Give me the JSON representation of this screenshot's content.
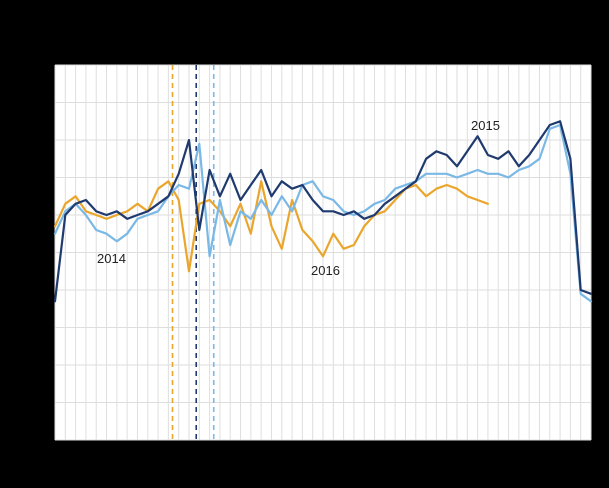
{
  "chart_data": {
    "type": "line",
    "title": "",
    "xlabel": "",
    "ylabel": "",
    "x_unit": "week",
    "x_range": [
      1,
      53
    ],
    "ylim": [
      0,
      100
    ],
    "grid": {
      "vertical_divisions": 52,
      "horizontal_divisions": 10,
      "color": "#dedede",
      "plot_background": "#ffffff",
      "outer_background": "#000000"
    },
    "series": [
      {
        "name": "2016",
        "color": "#eaa62c",
        "values": [
          57,
          63,
          65,
          61,
          60,
          59,
          60,
          61,
          63,
          61,
          67,
          69,
          64,
          45,
          63,
          64,
          61,
          57,
          63,
          55,
          69,
          57,
          51,
          64,
          56,
          53,
          49,
          55,
          51,
          52,
          57,
          60,
          61,
          64,
          67,
          68,
          65,
          67,
          68,
          67,
          65,
          64,
          63
        ]
      },
      {
        "name": "2014",
        "color": "#7ab8e6",
        "values": [
          55,
          61,
          63,
          60,
          56,
          55,
          53,
          55,
          59,
          60,
          61,
          65,
          68,
          67,
          79,
          49,
          64,
          52,
          61,
          59,
          64,
          60,
          65,
          61,
          68,
          69,
          65,
          64,
          61,
          60,
          61,
          63,
          64,
          67,
          68,
          69,
          71,
          71,
          71,
          70,
          71,
          72,
          71,
          71,
          70,
          72,
          73,
          75,
          83,
          84,
          71,
          39,
          37
        ]
      },
      {
        "name": "2015",
        "color": "#1f3a6e",
        "values": [
          37,
          60,
          63,
          64,
          61,
          60,
          61,
          59,
          60,
          61,
          63,
          65,
          71,
          80,
          56,
          72,
          65,
          71,
          64,
          68,
          72,
          65,
          69,
          67,
          68,
          64,
          61,
          61,
          60,
          61,
          59,
          60,
          63,
          65,
          67,
          69,
          75,
          77,
          76,
          73,
          77,
          81,
          76,
          75,
          77,
          73,
          76,
          80,
          84,
          85,
          75,
          40,
          39
        ]
      }
    ],
    "vlines": [
      {
        "week": 12.4,
        "color": "#eaa62c",
        "style": "dashed"
      },
      {
        "week": 14.7,
        "color": "#1f3a6e",
        "style": "dashed"
      },
      {
        "week": 16.4,
        "color": "#7ab8e6",
        "style": "dashed"
      }
    ],
    "annotations": [
      {
        "text": "2014"
      },
      {
        "text": "2016"
      },
      {
        "text": "2015"
      }
    ]
  }
}
